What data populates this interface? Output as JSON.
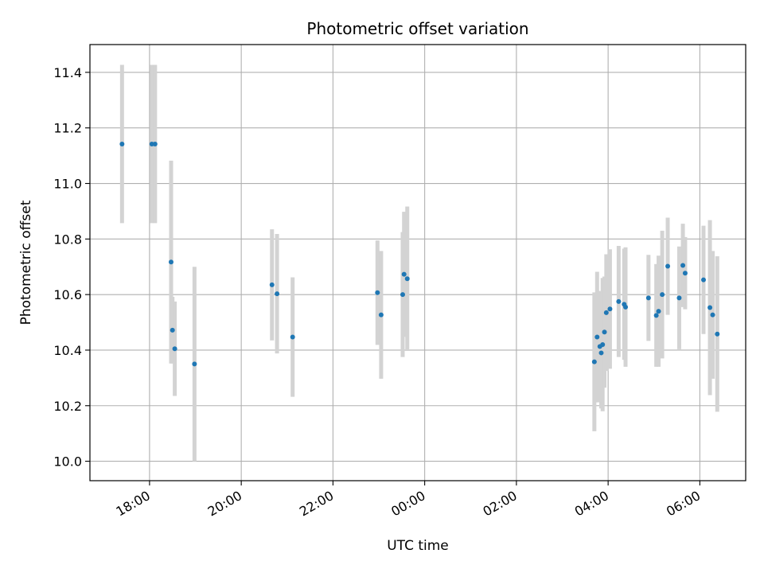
{
  "chart_data": {
    "type": "scatter",
    "title": "Photometric offset variation",
    "xlabel": "UTC time",
    "ylabel": "Photometric offset",
    "x_unit": "hours",
    "xlim": [
      16.7,
      31.0
    ],
    "ylim": [
      9.93,
      11.5
    ],
    "grid": true,
    "x_ticks": [
      {
        "value": 18,
        "label": "18:00"
      },
      {
        "value": 20,
        "label": "20:00"
      },
      {
        "value": 22,
        "label": "22:00"
      },
      {
        "value": 24,
        "label": "00:00"
      },
      {
        "value": 26,
        "label": "02:00"
      },
      {
        "value": 28,
        "label": "04:00"
      },
      {
        "value": 30,
        "label": "06:00"
      }
    ],
    "y_ticks": [
      {
        "value": 10.0,
        "label": "10.0"
      },
      {
        "value": 10.2,
        "label": "10.2"
      },
      {
        "value": 10.4,
        "label": "10.4"
      },
      {
        "value": 10.6,
        "label": "10.6"
      },
      {
        "value": 10.8,
        "label": "10.8"
      },
      {
        "value": 11.0,
        "label": "11.0"
      },
      {
        "value": 11.2,
        "label": "11.2"
      },
      {
        "value": 11.4,
        "label": "11.4"
      }
    ],
    "marker_color": "#1f77b4",
    "errorbar_color": "#d3d3d3",
    "points": [
      {
        "x": 17.4,
        "y": 11.142,
        "err": 0.285
      },
      {
        "x": 18.05,
        "y": 11.142,
        "err": 0.285
      },
      {
        "x": 18.12,
        "y": 11.142,
        "err": 0.285
      },
      {
        "x": 18.47,
        "y": 10.717,
        "err": 0.365
      },
      {
        "x": 18.5,
        "y": 10.472,
        "err": 0.12
      },
      {
        "x": 18.55,
        "y": 10.405,
        "err": 0.17
      },
      {
        "x": 18.98,
        "y": 10.35,
        "err": 0.35
      },
      {
        "x": 20.67,
        "y": 10.635,
        "err": 0.2
      },
      {
        "x": 20.78,
        "y": 10.603,
        "err": 0.215
      },
      {
        "x": 21.12,
        "y": 10.447,
        "err": 0.215
      },
      {
        "x": 22.97,
        "y": 10.607,
        "err": 0.188
      },
      {
        "x": 23.05,
        "y": 10.527,
        "err": 0.23
      },
      {
        "x": 23.52,
        "y": 10.6,
        "err": 0.225
      },
      {
        "x": 23.55,
        "y": 10.673,
        "err": 0.225
      },
      {
        "x": 23.62,
        "y": 10.657,
        "err": 0.26
      },
      {
        "x": 27.7,
        "y": 10.358,
        "err": 0.25
      },
      {
        "x": 27.76,
        "y": 10.447,
        "err": 0.235
      },
      {
        "x": 27.82,
        "y": 10.413,
        "err": 0.2
      },
      {
        "x": 27.85,
        "y": 10.39,
        "err": 0.2
      },
      {
        "x": 27.88,
        "y": 10.42,
        "err": 0.24
      },
      {
        "x": 27.92,
        "y": 10.465,
        "err": 0.2
      },
      {
        "x": 27.96,
        "y": 10.535,
        "err": 0.21
      },
      {
        "x": 28.04,
        "y": 10.548,
        "err": 0.215
      },
      {
        "x": 28.23,
        "y": 10.575,
        "err": 0.2
      },
      {
        "x": 28.35,
        "y": 10.565,
        "err": 0.2
      },
      {
        "x": 28.38,
        "y": 10.555,
        "err": 0.215
      },
      {
        "x": 28.88,
        "y": 10.588,
        "err": 0.155
      },
      {
        "x": 29.05,
        "y": 10.525,
        "err": 0.185
      },
      {
        "x": 29.1,
        "y": 10.54,
        "err": 0.2
      },
      {
        "x": 29.18,
        "y": 10.6,
        "err": 0.23
      },
      {
        "x": 29.3,
        "y": 10.702,
        "err": 0.175
      },
      {
        "x": 29.55,
        "y": 10.588,
        "err": 0.185
      },
      {
        "x": 29.63,
        "y": 10.705,
        "err": 0.15
      },
      {
        "x": 29.68,
        "y": 10.677,
        "err": 0.13
      },
      {
        "x": 30.08,
        "y": 10.653,
        "err": 0.195
      },
      {
        "x": 30.22,
        "y": 10.553,
        "err": 0.315
      },
      {
        "x": 30.28,
        "y": 10.527,
        "err": 0.23
      },
      {
        "x": 30.38,
        "y": 10.458,
        "err": 0.28
      }
    ]
  }
}
